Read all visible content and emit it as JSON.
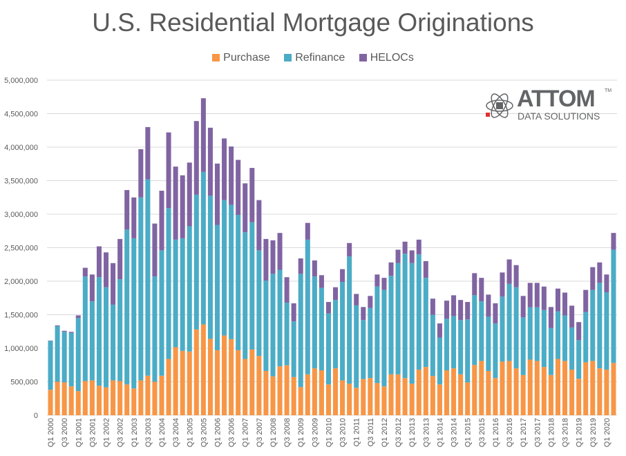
{
  "chart_data": {
    "type": "bar",
    "stacked": true,
    "title": "U.S. Residential Mortgage Originations",
    "xlabel": "",
    "ylabel": "",
    "ylim": [
      0,
      5000000
    ],
    "yticks": [
      "0",
      "500,000",
      "1,000,000",
      "1,500,000",
      "2,000,000",
      "2,500,000",
      "3,000,000",
      "3,500,000",
      "4,000,000",
      "4,500,000",
      "5,000,000"
    ],
    "grid": true,
    "legend_position": "top",
    "start_year": 2000,
    "series": [
      {
        "name": "Purchase",
        "color": "#F79646",
        "values": [
          380000,
          500000,
          490000,
          430000,
          360000,
          510000,
          520000,
          440000,
          415000,
          520000,
          510000,
          460000,
          400000,
          520000,
          590000,
          500000,
          590000,
          840000,
          1015000,
          960000,
          950000,
          1280000,
          1355000,
          1140000,
          970000,
          1190000,
          1135000,
          970000,
          840000,
          980000,
          885000,
          660000,
          580000,
          730000,
          745000,
          570000,
          420000,
          610000,
          700000,
          670000,
          460000,
          700000,
          520000,
          470000,
          410000,
          540000,
          555000,
          480000,
          430000,
          610000,
          610000,
          555000,
          470000,
          680000,
          720000,
          585000,
          460000,
          670000,
          700000,
          610000,
          490000,
          750000,
          810000,
          660000,
          555000,
          800000,
          810000,
          700000,
          600000,
          830000,
          810000,
          720000,
          600000,
          840000,
          810000,
          680000,
          545000,
          790000,
          810000,
          700000,
          680000,
          780000
        ]
      },
      {
        "name": "Refinance",
        "color": "#4BACC6",
        "values": [
          730000,
          830000,
          755000,
          800000,
          1090000,
          1560000,
          1180000,
          1620000,
          1495000,
          1130000,
          1520000,
          2310000,
          2240000,
          2730000,
          2930000,
          1570000,
          1870000,
          2250000,
          1605000,
          1680000,
          1870000,
          2010000,
          2275000,
          2135000,
          1870000,
          2020000,
          2005000,
          2020000,
          1890000,
          1900000,
          1575000,
          1350000,
          1530000,
          1440000,
          935000,
          830000,
          1690000,
          2010000,
          1370000,
          1230000,
          1060000,
          1020000,
          1470000,
          1900000,
          1230000,
          880000,
          1045000,
          1440000,
          1440000,
          1470000,
          1660000,
          1855000,
          1800000,
          1720000,
          1330000,
          915000,
          700000,
          770000,
          780000,
          810000,
          940000,
          1040000,
          890000,
          810000,
          815000,
          970000,
          1150000,
          1210000,
          860000,
          780000,
          800000,
          850000,
          700000,
          710000,
          680000,
          630000,
          575000,
          750000,
          1060000,
          1275000,
          1155000,
          1690000
        ]
      },
      {
        "name": "HELOCs",
        "color": "#8064A2",
        "values": [
          5000,
          10000,
          15000,
          15000,
          40000,
          130000,
          400000,
          460000,
          520000,
          620000,
          600000,
          590000,
          610000,
          720000,
          780000,
          790000,
          890000,
          1130000,
          1090000,
          940000,
          950000,
          1100000,
          1100000,
          1015000,
          915000,
          920000,
          870000,
          820000,
          730000,
          810000,
          750000,
          620000,
          500000,
          550000,
          380000,
          270000,
          230000,
          250000,
          240000,
          190000,
          170000,
          190000,
          190000,
          200000,
          170000,
          195000,
          180000,
          180000,
          180000,
          200000,
          200000,
          180000,
          190000,
          220000,
          250000,
          240000,
          210000,
          270000,
          310000,
          300000,
          260000,
          330000,
          350000,
          330000,
          300000,
          360000,
          365000,
          330000,
          320000,
          365000,
          365000,
          350000,
          315000,
          340000,
          340000,
          325000,
          270000,
          330000,
          340000,
          305000,
          265000,
          250000
        ]
      }
    ]
  },
  "logo": {
    "name": "ATTOM",
    "subtitle": "DATA SOLUTIONS",
    "tm": "TM"
  }
}
